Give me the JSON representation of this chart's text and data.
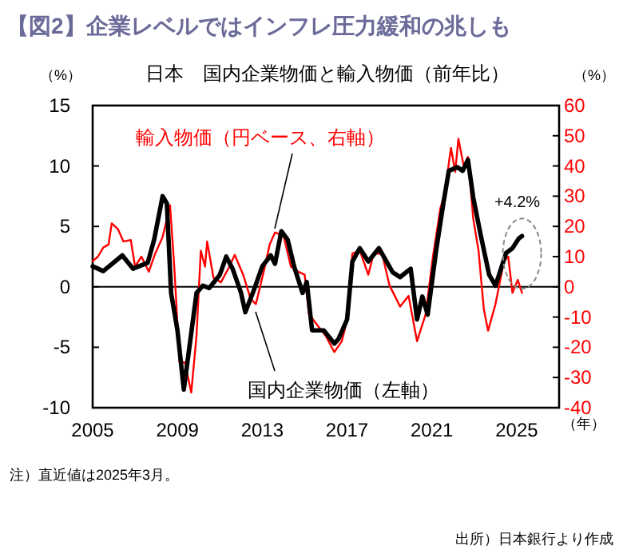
{
  "chart_data": {
    "type": "line",
    "title": "【図2】企業レベルではインフレ圧力緩和の兆しも",
    "subtitle": "日本　国内企業物価と輸入物価（前年比）",
    "ylabel": "（%）",
    "y2label": "（%）",
    "xlabel": "（年）",
    "xlim": [
      2005,
      2027
    ],
    "xticks": [
      2005,
      2009,
      2013,
      2017,
      2021,
      2025
    ],
    "ylim": [
      -10,
      15
    ],
    "yticks": [
      -10,
      -5,
      0,
      5,
      10,
      15
    ],
    "y2lim": [
      -40,
      60
    ],
    "y2ticks": [
      -40,
      -30,
      -20,
      -10,
      0,
      10,
      20,
      30,
      40,
      50,
      60
    ],
    "grid": false,
    "ref_lines": [
      {
        "axis": "y",
        "value": 0
      }
    ],
    "legend": false,
    "marker": "none",
    "line_style": "solid",
    "series": [
      {
        "name": "輸入物価（円ベース、右軸）",
        "color": "#ff0000",
        "axis": "y2",
        "x": [
          2005.0,
          2005.25,
          2005.5,
          2005.75,
          2005.9,
          2006.2,
          2006.45,
          2006.8,
          2007.0,
          2007.3,
          2007.65,
          2007.95,
          2008.3,
          2008.65,
          2008.85,
          2009.1,
          2009.35,
          2009.65,
          2009.9,
          2010.1,
          2010.3,
          2010.4,
          2010.7,
          2011.05,
          2011.45,
          2011.7,
          2012.1,
          2012.45,
          2012.7,
          2013.1,
          2013.35,
          2013.6,
          2014.0,
          2014.35,
          2014.7,
          2015.0,
          2015.2,
          2015.6,
          2016.0,
          2016.4,
          2016.75,
          2017.0,
          2017.25,
          2017.6,
          2018.0,
          2018.25,
          2018.65,
          2019.0,
          2019.5,
          2019.9,
          2020.3,
          2020.7,
          2021.05,
          2021.4,
          2021.65,
          2021.8,
          2021.9,
          2022.1,
          2022.25,
          2022.5,
          2022.7,
          2022.95,
          2023.2,
          2023.45,
          2023.65,
          2024.0,
          2024.4,
          2024.6,
          2024.8,
          2025.05,
          2025.25
        ],
        "values": [
          8.5,
          10,
          13,
          14,
          21,
          19,
          15,
          15.5,
          6.7,
          10,
          5,
          11,
          16.5,
          27,
          6.7,
          -25,
          -25,
          -35,
          -16,
          12,
          6.7,
          15,
          3,
          1.5,
          6.7,
          10.6,
          4,
          -4,
          -5.7,
          6,
          14,
          18,
          17,
          6.7,
          5,
          4,
          -9,
          -12.7,
          -16.3,
          -21.6,
          -18,
          -11,
          11,
          12,
          4,
          11,
          11,
          0.5,
          -6.5,
          -3,
          -18,
          -9.2,
          10,
          26,
          32,
          41,
          46,
          38,
          49,
          40,
          43,
          22.6,
          12,
          -7.4,
          -14.5,
          -5.7,
          8.5,
          10,
          -2,
          2.3,
          -2
        ]
      },
      {
        "name": "国内企業物価（左軸）",
        "color": "#000000",
        "axis": "y",
        "x": [
          2005.0,
          2005.5,
          2006.4,
          2006.9,
          2007.6,
          2007.9,
          2008.3,
          2008.5,
          2008.7,
          2009.0,
          2009.3,
          2009.6,
          2009.9,
          2010.2,
          2010.5,
          2011.0,
          2011.3,
          2011.6,
          2012.0,
          2012.2,
          2012.6,
          2013.0,
          2013.4,
          2013.6,
          2013.9,
          2014.2,
          2014.5,
          2014.9,
          2015.1,
          2015.35,
          2015.9,
          2016.4,
          2016.6,
          2017.0,
          2017.25,
          2017.6,
          2018.0,
          2018.5,
          2019.15,
          2019.5,
          2020.0,
          2020.3,
          2020.55,
          2020.8,
          2021.2,
          2021.55,
          2021.8,
          2022.2,
          2022.45,
          2022.7,
          2022.95,
          2023.3,
          2023.7,
          2024.0,
          2024.5,
          2024.8,
          2025.1,
          2025.25
        ],
        "values": [
          1.7,
          1.3,
          2.6,
          1.5,
          2.0,
          3.9,
          7.5,
          6.9,
          -0.5,
          -3.6,
          -8.5,
          -4.5,
          -0.5,
          0.1,
          -0.1,
          1.0,
          2.5,
          1.5,
          -0.5,
          -2.1,
          -0.3,
          1.7,
          2.6,
          1.9,
          4.6,
          3.9,
          1.7,
          -0.5,
          0.4,
          -3.6,
          -3.6,
          -4.7,
          -4.3,
          -2.7,
          2.1,
          3.2,
          2.1,
          3.2,
          1.2,
          0.8,
          1.5,
          -2.7,
          -0.8,
          -2.3,
          3.0,
          7.0,
          9.6,
          9.9,
          9.6,
          10.5,
          7.4,
          4.3,
          1.0,
          0.1,
          2.8,
          3.2,
          4.0,
          4.2
        ]
      }
    ],
    "annotations": [
      {
        "text": "+4.2%",
        "x": 2025.25,
        "y": 4.2
      },
      "注）直近値は2025年3月。",
      "出所）日本銀行より作成"
    ]
  }
}
